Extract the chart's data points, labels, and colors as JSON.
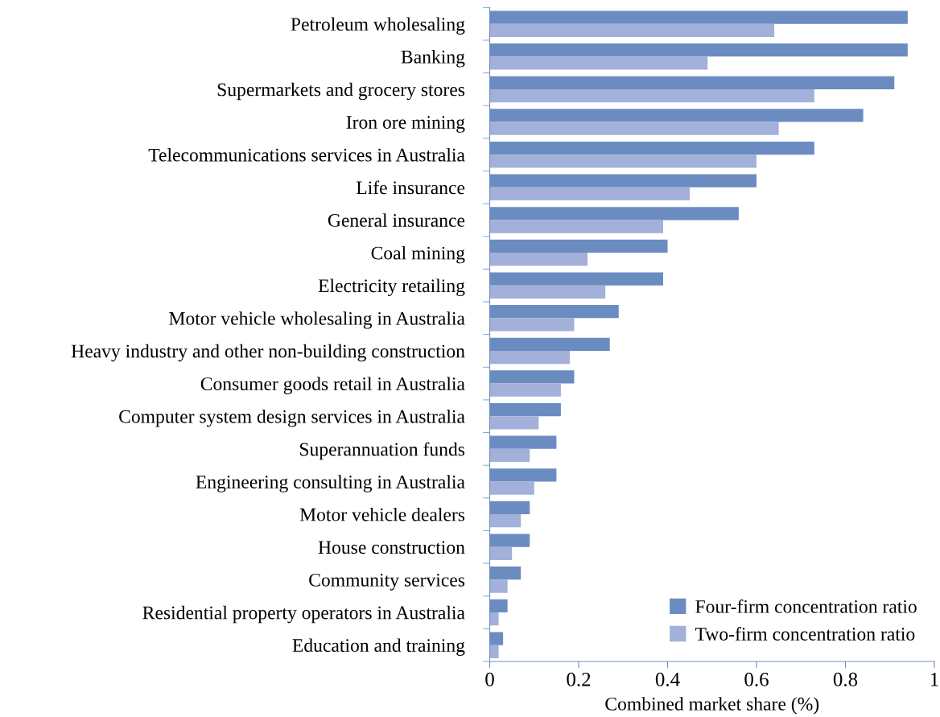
{
  "chart_data": {
    "type": "bar",
    "orientation": "horizontal",
    "xlabel": "Combined market share (%)",
    "categories": [
      "Petroleum wholesaling",
      "Banking",
      "Supermarkets and grocery stores",
      "Iron ore mining",
      "Telecommunications services in Australia",
      "Life insurance",
      "General insurance",
      "Coal mining",
      "Electricity retailing",
      "Motor vehicle wholesaling in Australia",
      "Heavy industry and other non-building construction",
      "Consumer goods retail in Australia",
      "Computer system design services in Australia",
      "Superannuation funds",
      "Engineering consulting in Australia",
      "Motor vehicle dealers",
      "House construction",
      "Community services",
      "Residential property operators in Australia",
      "Education and training"
    ],
    "series": [
      {
        "name": "Four-firm concentration ratio",
        "color": "#6b8cc0",
        "values": [
          0.94,
          0.94,
          0.91,
          0.84,
          0.73,
          0.6,
          0.56,
          0.4,
          0.39,
          0.29,
          0.27,
          0.19,
          0.16,
          0.15,
          0.15,
          0.09,
          0.09,
          0.07,
          0.04,
          0.03
        ]
      },
      {
        "name": "Two-firm concentration ratio",
        "color": "#a3b0da",
        "values": [
          0.64,
          0.49,
          0.73,
          0.65,
          0.6,
          0.45,
          0.39,
          0.22,
          0.26,
          0.19,
          0.18,
          0.16,
          0.11,
          0.09,
          0.1,
          0.07,
          0.05,
          0.04,
          0.02,
          0.02
        ]
      }
    ],
    "xlim": [
      0,
      1
    ],
    "xticks": [
      0,
      0.2,
      0.4,
      0.6,
      0.8,
      1
    ],
    "grid": false,
    "legend": "bottom right"
  }
}
